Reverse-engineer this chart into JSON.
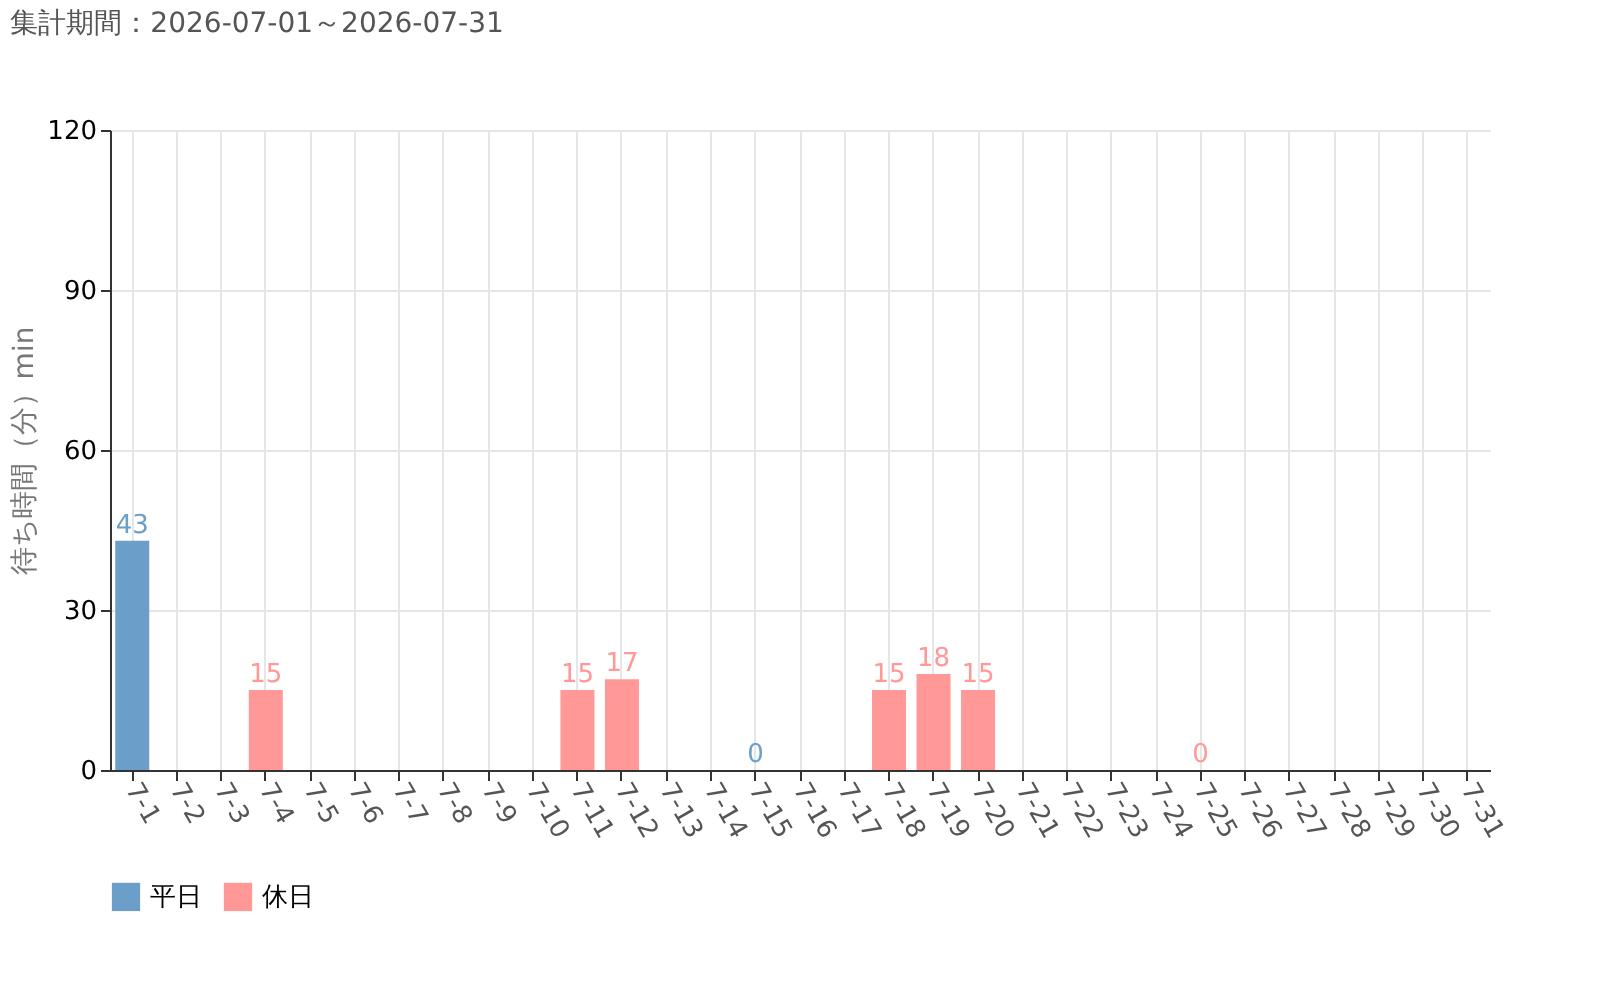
{
  "chart_data": {
    "type": "bar",
    "title": "集計期間：2026-07-01～2026-07-31",
    "ylabel": "待ち時間（分）min",
    "categories": [
      "7-1",
      "7-2",
      "7-3",
      "7-4",
      "7-5",
      "7-6",
      "7-7",
      "7-8",
      "7-9",
      "7-10",
      "7-11",
      "7-12",
      "7-13",
      "7-14",
      "7-15",
      "7-16",
      "7-17",
      "7-18",
      "7-19",
      "7-20",
      "7-21",
      "7-22",
      "7-23",
      "7-24",
      "7-25",
      "7-26",
      "7-27",
      "7-28",
      "7-29",
      "7-30",
      "7-31"
    ],
    "series": [
      {
        "name": "平日",
        "color": "#6b9ec8",
        "values": [
          43,
          null,
          null,
          null,
          null,
          null,
          null,
          null,
          null,
          null,
          null,
          null,
          null,
          null,
          0,
          null,
          null,
          null,
          null,
          null,
          null,
          null,
          null,
          null,
          null,
          null,
          null,
          null,
          null,
          null,
          null
        ]
      },
      {
        "name": "休日",
        "color": "#ff9896",
        "values": [
          null,
          null,
          null,
          15,
          null,
          null,
          null,
          null,
          null,
          null,
          15,
          17,
          null,
          null,
          null,
          null,
          null,
          15,
          18,
          15,
          null,
          null,
          null,
          null,
          0,
          null,
          null,
          null,
          null,
          null,
          null
        ]
      }
    ],
    "ylim": [
      0,
      120
    ],
    "yticks": [
      0,
      30,
      60,
      90,
      120
    ],
    "grid": true,
    "data_labels": true,
    "legend": "bottom left"
  }
}
